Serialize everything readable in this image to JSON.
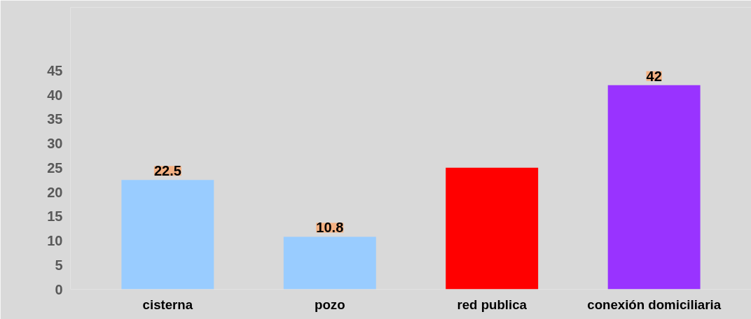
{
  "chart_data": {
    "type": "bar",
    "categories": [
      "cisterna",
      "pozo",
      "red publica",
      "conexión domiciliaria"
    ],
    "values": [
      22.5,
      10.8,
      25,
      42
    ],
    "colors": [
      "#99ccff",
      "#99ccff",
      "#ff0000",
      "#9933ff"
    ],
    "value_labels": [
      "22.5",
      "10.8",
      null,
      "42"
    ],
    "ylim": [
      0,
      58
    ],
    "yticks": [
      0,
      5,
      10,
      15,
      20,
      25,
      30,
      35,
      40,
      45
    ],
    "grid": false
  }
}
